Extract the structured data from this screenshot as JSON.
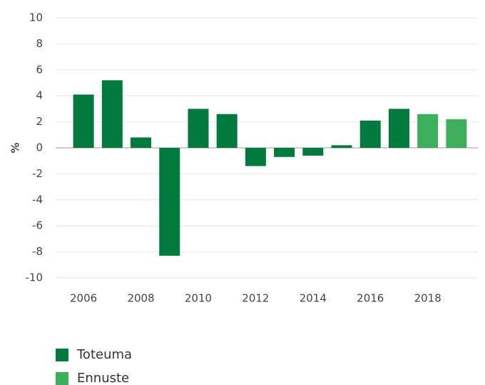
{
  "chart_data": {
    "type": "bar",
    "y_label": "%",
    "categories": [
      "2006",
      null,
      "2008",
      null,
      "2010",
      null,
      "2012",
      null,
      "2014",
      null,
      "2016",
      null,
      "2018",
      null
    ],
    "series": [
      {
        "name": "Toteuma",
        "color": "#007a3d",
        "values": [
          4.1,
          5.2,
          0.8,
          -8.3,
          3.0,
          2.6,
          -1.4,
          -0.7,
          -0.6,
          0.2,
          2.1,
          3.0,
          null,
          null
        ]
      },
      {
        "name": "Ennuste",
        "color": "#3daf5c",
        "values": [
          null,
          null,
          null,
          null,
          null,
          null,
          null,
          null,
          null,
          null,
          null,
          null,
          2.6,
          2.2
        ]
      }
    ],
    "ylim": [
      -10,
      10
    ],
    "yticks": [
      -10,
      -8,
      -6,
      -4,
      -2,
      0,
      2,
      4,
      6,
      8,
      10
    ],
    "grid": true,
    "legend": "bottom"
  }
}
